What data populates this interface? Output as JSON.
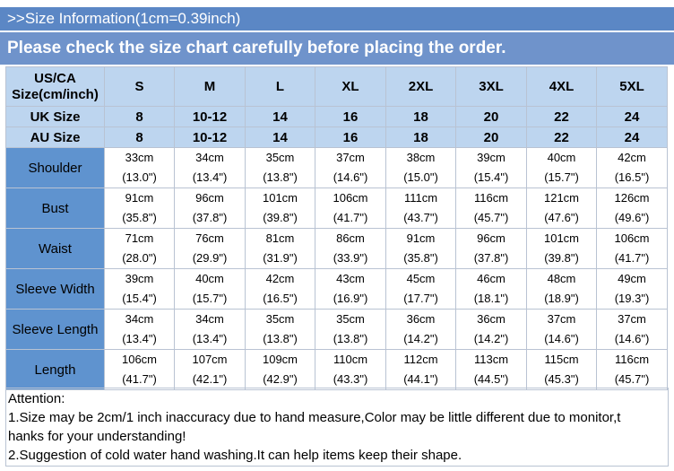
{
  "banner": {
    "title": ">>Size Information(1cm=0.39inch)",
    "subtitle": "Please check the size chart carefully before placing the order."
  },
  "table": {
    "header_label": [
      "US/CA",
      "Size(cm/inch)"
    ],
    "sizes": [
      "S",
      "M",
      "L",
      "XL",
      "2XL",
      "3XL",
      "4XL",
      "5XL"
    ],
    "uk_label": "UK Size",
    "uk": [
      "8",
      "10-12",
      "14",
      "16",
      "18",
      "20",
      "22",
      "24"
    ],
    "au_label": "AU  Size",
    "au": [
      "8",
      "10-12",
      "14",
      "16",
      "18",
      "20",
      "22",
      "24"
    ],
    "rows": [
      {
        "label": "Shoulder",
        "cm": [
          "33cm",
          "34cm",
          "35cm",
          "37cm",
          "38cm",
          "39cm",
          "40cm",
          "42cm"
        ],
        "in": [
          "(13.0\")",
          "(13.4\")",
          "(13.8\")",
          "(14.6\")",
          "(15.0\")",
          "(15.4\")",
          "(15.7\")",
          "(16.5\")"
        ]
      },
      {
        "label": "Bust",
        "cm": [
          "91cm",
          "96cm",
          "101cm",
          "106cm",
          "111cm",
          "116cm",
          "121cm",
          "126cm"
        ],
        "in": [
          "(35.8\")",
          "(37.8\")",
          "(39.8\")",
          "(41.7\")",
          "(43.7\")",
          "(45.7\")",
          "(47.6\")",
          "(49.6\")"
        ]
      },
      {
        "label": "Waist",
        "cm": [
          "71cm",
          "76cm",
          "81cm",
          "86cm",
          "91cm",
          "96cm",
          "101cm",
          "106cm"
        ],
        "in": [
          "(28.0\")",
          "(29.9\")",
          "(31.9\")",
          "(33.9\")",
          "(35.8\")",
          "(37.8\")",
          "(39.8\")",
          "(41.7\")"
        ]
      },
      {
        "label": "Sleeve Width",
        "cm": [
          "39cm",
          "40cm",
          "42cm",
          "43cm",
          "45cm",
          "46cm",
          "48cm",
          "49cm"
        ],
        "in": [
          "(15.4\")",
          "(15.7\")",
          "(16.5\")",
          "(16.9\")",
          "(17.7\")",
          "(18.1\")",
          "(18.9\")",
          "(19.3\")"
        ]
      },
      {
        "label": "Sleeve Length",
        "cm": [
          "34cm",
          "34cm",
          "35cm",
          "35cm",
          "36cm",
          "36cm",
          "37cm",
          "37cm"
        ],
        "in": [
          "(13.4\")",
          "(13.4\")",
          "(13.8\")",
          "(13.8\")",
          "(14.2\")",
          "(14.2\")",
          "(14.6\")",
          "(14.6\")"
        ]
      },
      {
        "label": "Length",
        "cm": [
          "106cm",
          "107cm",
          "109cm",
          "110cm",
          "112cm",
          "113cm",
          "115cm",
          "116cm"
        ],
        "in": [
          "(41.7\")",
          "(42.1\")",
          "(42.9\")",
          "(43.3\")",
          "(44.1\")",
          "(44.5\")",
          "(45.3\")",
          "(45.7\")"
        ]
      }
    ]
  },
  "notes": {
    "heading": "Attention:",
    "line1": "1.Size may be 2cm/1 inch inaccuracy due to hand measure,Color may be little different due to monitor,t",
    "line1b": "hanks for your understanding!",
    "line2": "2.Suggestion of cold water hand washing.It can help items keep their shape."
  },
  "colors": {
    "banner_dark": "#5b87c5",
    "banner_light": "#6f93cb",
    "header_bg": "#bdd5ef",
    "row_label_bg": "#5f93cf"
  }
}
